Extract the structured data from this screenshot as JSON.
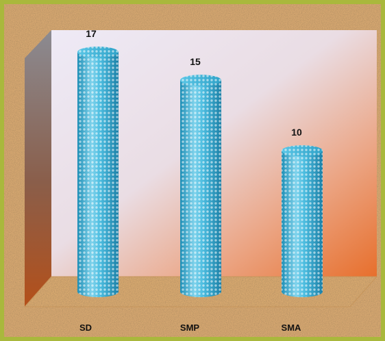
{
  "colors": {
    "outer_border": "#a9b83c",
    "cork_base": "#d6a770",
    "cylinder_body": "#3db3d6",
    "cylinder_highlight": "#bfeaf5",
    "back_wall_light": "#e9e4f0",
    "back_wall_warm": "#e77a3a",
    "side_wall_dark": "#6f6f74",
    "side_wall_warm": "#b5501b",
    "floor": "#d3a36b",
    "label_text": "#111111"
  },
  "chart_data": {
    "type": "bar",
    "style": "3d-cylinder",
    "title": "",
    "xlabel": "",
    "ylabel": "",
    "categories": [
      "SD",
      "SMP",
      "SMA"
    ],
    "series": [
      {
        "values": [
          17,
          15,
          10
        ]
      }
    ],
    "data_labels": [
      "17",
      "15",
      "10"
    ],
    "ylim": [
      0,
      17
    ],
    "grid": false,
    "legend": "none"
  }
}
